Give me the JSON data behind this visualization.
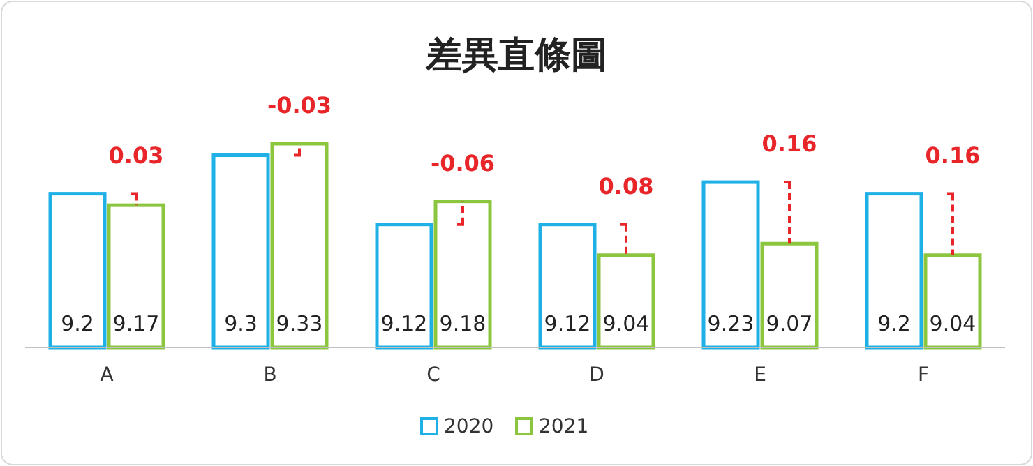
{
  "chart_data": {
    "type": "bar",
    "title": "差異直條圖",
    "categories": [
      "A",
      "B",
      "C",
      "D",
      "E",
      "F"
    ],
    "series": [
      {
        "name": "2020",
        "color": "#1fb0e6",
        "values": [
          9.2,
          9.3,
          9.12,
          9.12,
          9.23,
          9.2
        ]
      },
      {
        "name": "2021",
        "color": "#8cc63f",
        "values": [
          9.17,
          9.33,
          9.18,
          9.04,
          9.07,
          9.04
        ]
      }
    ],
    "ylim": [
      8.8,
      9.33
    ],
    "tick_labels": "x",
    "data_labels": true,
    "legend": "bottom",
    "annotations": [
      {
        "text": "0.03",
        "x": "A",
        "y": 9.2
      },
      {
        "text": "-0.03",
        "x": "B",
        "y": 9.3
      },
      {
        "text": "-0.06",
        "x": "C",
        "y": 9.12
      },
      {
        "text": "0.08",
        "x": "D",
        "y": 9.12
      },
      {
        "text": "0.16",
        "x": "E",
        "y": 9.23
      },
      {
        "text": "0.16",
        "x": "F",
        "y": 9.2
      }
    ]
  }
}
